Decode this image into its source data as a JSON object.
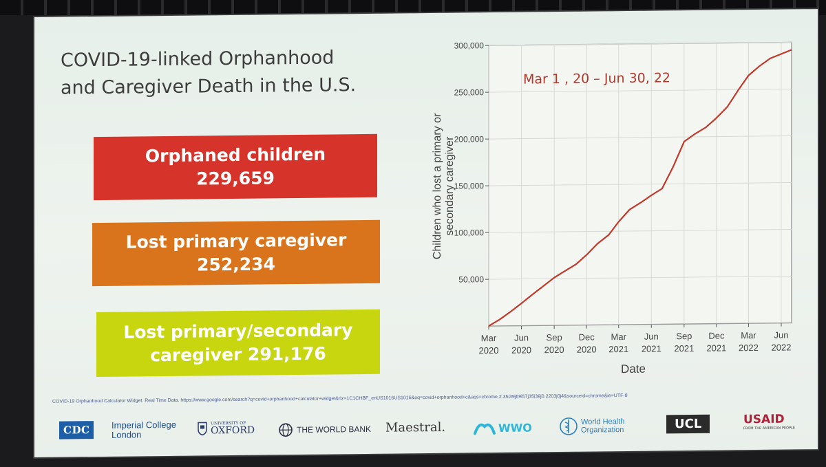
{
  "slide": {
    "title_line1": "COVID-19-linked Orphanhood",
    "title_line2": "and Caregiver Death in the U.S.",
    "stats": [
      {
        "label": "Orphaned  children",
        "value": "229,659",
        "color": "#d6342a"
      },
      {
        "label": "Lost primary caregiver",
        "value": "252,234",
        "color": "#d9741d"
      },
      {
        "label": "Lost primary/secondary",
        "value": "caregiver 291,176",
        "color": "#c8d610"
      }
    ],
    "source": "COVID-19 Orphanhood Calculator Widget. Real Time Data. https://www.google.com/search?q=covid+orphanhood+calculator+widget&rlz=1C1CHBF_enUS1016US1016&oq=covid+orphanhood+c&aqs=chrome.2.35i39j69i57j35i39j0.2203j0j4&sourceid=chrome&ie=UTF-8",
    "logos": {
      "cdc": "CDC",
      "imperial_1": "Imperial College",
      "imperial_2": "London",
      "oxford_small": "UNIVERSITY OF",
      "oxford_big": "OXFORD",
      "worldbank": "THE WORLD BANK",
      "maestral": "Maestral.",
      "wwo": "WWO",
      "who_1": "World Health",
      "who_2": "Organization",
      "ucl": "UCL",
      "usaid": "USAID",
      "usaid_tag": "FROM THE AMERICAN PEOPLE"
    }
  },
  "chart_data": {
    "type": "line",
    "annotation": "Mar 1 , 20 – Jun 30, 22",
    "ylabel": "Children who lost a primary or secondary caregiver",
    "xlabel": "Date",
    "ylim": [
      0,
      300000
    ],
    "yticks": [
      50000,
      100000,
      150000,
      200000,
      250000,
      300000
    ],
    "ytick_labels": [
      "50,000",
      "100,000",
      "150,000",
      "200,000",
      "250,000",
      "300,000"
    ],
    "xticks": [
      "2020-03",
      "2020-06",
      "2020-09",
      "2020-12",
      "2021-03",
      "2021-06",
      "2021-09",
      "2021-12",
      "2022-03",
      "2022-06"
    ],
    "xtick_labels": [
      [
        "Mar",
        "2020"
      ],
      [
        "Jun",
        "2020"
      ],
      [
        "Sep",
        "2020"
      ],
      [
        "Dec",
        "2020"
      ],
      [
        "Mar",
        "2021"
      ],
      [
        "Jun",
        "2021"
      ],
      [
        "Sep",
        "2021"
      ],
      [
        "Dec",
        "2021"
      ],
      [
        "Mar",
        "2022"
      ],
      [
        "Jun",
        "2022"
      ]
    ],
    "xlim": [
      "2020-03-01",
      "2022-06-30"
    ],
    "grid": true,
    "line_color": "#c0392b",
    "annotation_color": "#b03a2e",
    "series": [
      {
        "x": [
          "2020-03-01",
          "2020-04-01",
          "2020-05-01",
          "2020-06-01",
          "2020-07-01",
          "2020-08-01",
          "2020-09-01",
          "2020-10-01",
          "2020-11-01",
          "2020-12-01",
          "2021-01-01",
          "2021-02-01",
          "2021-03-01",
          "2021-04-01",
          "2021-05-01",
          "2021-06-01",
          "2021-07-01",
          "2021-08-01",
          "2021-09-01",
          "2021-10-01",
          "2021-11-01",
          "2021-12-01",
          "2022-01-01",
          "2022-02-01",
          "2022-03-01",
          "2022-04-01",
          "2022-05-01",
          "2022-06-30"
        ],
        "y": [
          0,
          7000,
          15000,
          24000,
          33000,
          42000,
          51000,
          58000,
          65000,
          75000,
          87000,
          96000,
          110000,
          123000,
          130000,
          138000,
          145000,
          168000,
          195000,
          203000,
          210000,
          220000,
          232000,
          250000,
          265000,
          275000,
          283000,
          292000
        ]
      }
    ]
  }
}
